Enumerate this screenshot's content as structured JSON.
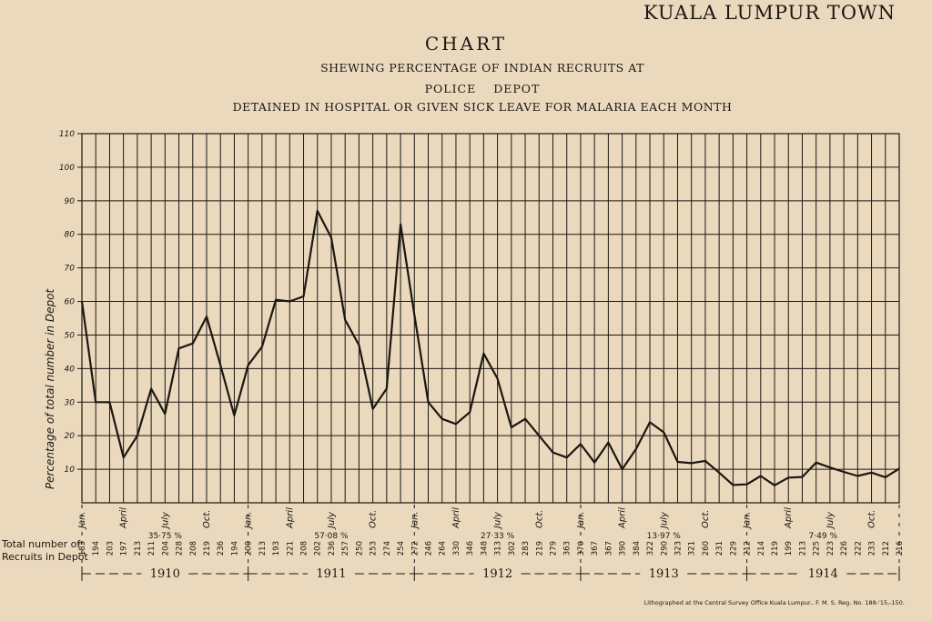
{
  "header": {
    "town": "KUALA LUMPUR TOWN",
    "title": "CHART",
    "subtitle_1": "SHEWING PERCENTAGE OF INDIAN RECRUITS AT",
    "subtitle_2": "POLICE DEPOT",
    "subtitle_3": "DETAINED IN HOSPITAL OR GIVEN SICK LEAVE FOR MALARIA EACH MONTH"
  },
  "footer": {
    "credit": "Lithographed at the Central Survey Office Kuala Lumpur., F. M. S. Reg. No. 188-'15,-150.",
    "row_label_1": "Total number of",
    "row_label_2": "Recruits in Depot"
  },
  "chart_data": {
    "type": "line",
    "title": "CHART",
    "ylabel": "Percentage of total number in Depot",
    "ylim": [
      0,
      110
    ],
    "yticks": [
      10,
      20,
      30,
      40,
      50,
      60,
      70,
      80,
      90,
      100,
      110
    ],
    "grid": true,
    "month_labels": [
      "Jan.",
      "April",
      "July",
      "Oct."
    ],
    "years": [
      {
        "year": "1910",
        "percent": "35·75 %"
      },
      {
        "year": "1911",
        "percent": "57·08 %"
      },
      {
        "year": "1912",
        "percent": "27·33 %"
      },
      {
        "year": "1913",
        "percent": "13·97 %"
      },
      {
        "year": "1914",
        "percent": "7·49 %"
      }
    ],
    "recruits": [
      "183",
      "194",
      "203",
      "197",
      "213",
      "211",
      "204",
      "228",
      "208",
      "219",
      "236",
      "194",
      "200",
      "213",
      "193",
      "221",
      "208",
      "202",
      "236",
      "257",
      "250",
      "253",
      "274",
      "254",
      "272",
      "246",
      "264",
      "330",
      "346",
      "348",
      "313",
      "302",
      "283",
      "219",
      "279",
      "363",
      "370",
      "367",
      "367",
      "390",
      "384",
      "322",
      "290",
      "323",
      "321",
      "260",
      "231",
      "229",
      "212",
      "214",
      "219",
      "199",
      "213",
      "225",
      "223",
      "226",
      "222",
      "233",
      "212",
      "216"
    ],
    "series": [
      {
        "values": [
          60,
          30,
          30,
          13.5,
          20,
          34,
          26.5,
          46,
          47.5,
          55.5,
          41,
          26,
          41,
          46.5,
          60.5,
          60,
          61.5,
          87,
          79,
          54.5,
          47,
          28,
          34,
          83,
          56,
          30,
          25,
          23.5,
          27,
          44.5,
          37,
          22.5,
          25,
          20,
          15,
          13.5,
          17.5,
          12,
          18,
          10,
          16,
          24,
          21,
          12.2,
          11.8,
          12.5,
          9,
          5.3,
          5.5,
          8,
          5.2,
          7.5,
          7.7,
          12,
          10.5,
          9.2,
          8,
          9,
          7.6,
          10.2
        ]
      }
    ]
  }
}
